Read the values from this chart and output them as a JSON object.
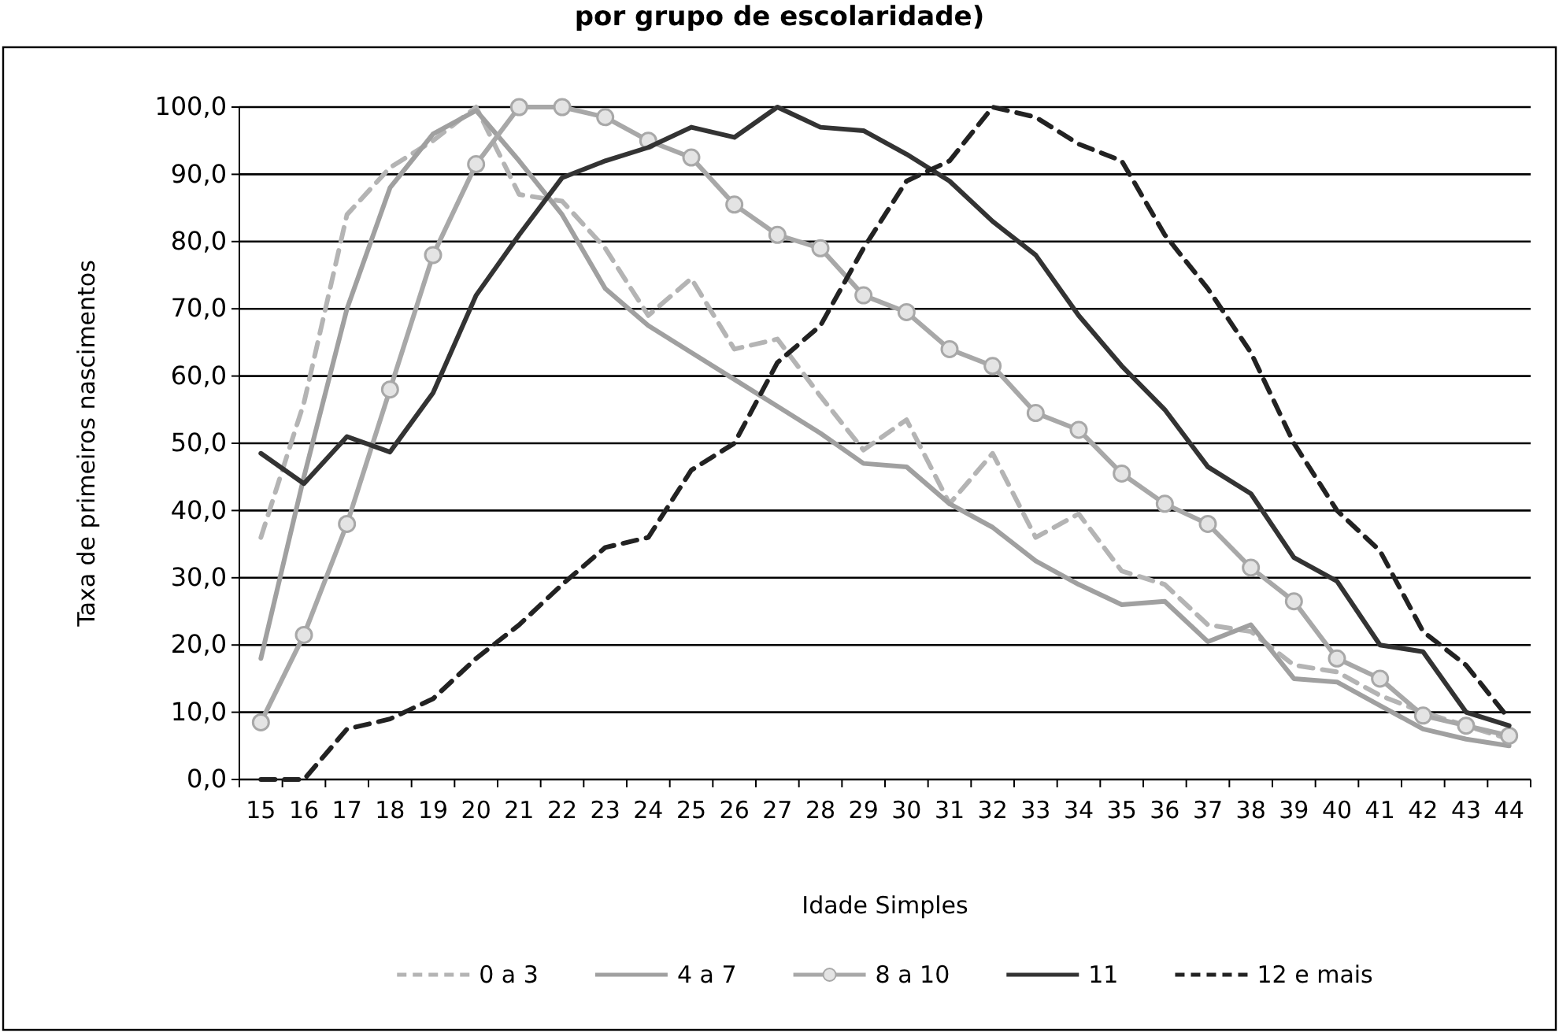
{
  "chart_data": {
    "type": "line",
    "title": "por grupo de escolaridade)",
    "xlabel": "Idade Simples",
    "ylabel": "Taxa de primeiros nascimentos",
    "categories": [
      "15",
      "16",
      "17",
      "18",
      "19",
      "20",
      "21",
      "22",
      "23",
      "24",
      "25",
      "26",
      "27",
      "28",
      "29",
      "30",
      "31",
      "32",
      "33",
      "34",
      "35",
      "36",
      "37",
      "38",
      "39",
      "40",
      "41",
      "42",
      "43",
      "44"
    ],
    "series": [
      {
        "name": "0 a 3",
        "color": "#b4b4b4",
        "line_style": "dashed",
        "marker": "none",
        "values": [
          36,
          56,
          84,
          91,
          95,
          100,
          87,
          86,
          79,
          69,
          74.5,
          64,
          65.5,
          57,
          49,
          53.5,
          41,
          48.5,
          36,
          39.5,
          31,
          29,
          23,
          22,
          17,
          16,
          12.5,
          10,
          8,
          6
        ]
      },
      {
        "name": "4 a 7",
        "color": "#a0a0a0",
        "line_style": "solid",
        "marker": "none",
        "values": [
          18,
          45,
          70,
          88,
          96,
          99.5,
          92,
          84,
          73,
          67.5,
          63.5,
          59.5,
          55.5,
          51.5,
          47,
          46.5,
          41,
          37.5,
          32.5,
          29,
          26,
          26.5,
          20.5,
          23,
          15,
          14.5,
          11,
          7.5,
          6,
          5
        ]
      },
      {
        "name": "8 a 10",
        "color": "#a8a8a8",
        "line_style": "solid",
        "marker": "circle",
        "values": [
          8.5,
          21.5,
          38,
          58,
          78,
          91.5,
          100,
          100,
          98.5,
          95,
          92.5,
          85.5,
          81,
          79,
          72,
          69.5,
          64,
          61.5,
          54.5,
          52,
          45.5,
          41,
          38,
          31.5,
          26.5,
          18,
          15,
          9.5,
          8,
          6.5
        ]
      },
      {
        "name": "11",
        "color": "#333333",
        "line_style": "solid",
        "marker": "none",
        "values": [
          48.5,
          44,
          51,
          48.7,
          57.5,
          72,
          81,
          89.5,
          92,
          94,
          97,
          95.5,
          100,
          97,
          96.5,
          93,
          89,
          83,
          78,
          69,
          61.5,
          55,
          46.5,
          42.5,
          33,
          29.5,
          20,
          19,
          10,
          8
        ]
      },
      {
        "name": "12 e mais",
        "color": "#222222",
        "line_style": "dashed",
        "marker": "none",
        "values": [
          0,
          0,
          7.5,
          9,
          12,
          18,
          23,
          29,
          34.5,
          36,
          46,
          50,
          62,
          67.5,
          79,
          89,
          92,
          100,
          98.5,
          94.5,
          92,
          81,
          73,
          63.5,
          50,
          40,
          34,
          22,
          17,
          9
        ]
      }
    ],
    "ylim": [
      0,
      100
    ],
    "yticks": [
      {
        "value": 0,
        "label": "0,0"
      },
      {
        "value": 10,
        "label": "10,0"
      },
      {
        "value": 20,
        "label": "20,0"
      },
      {
        "value": 30,
        "label": "30,0"
      },
      {
        "value": 40,
        "label": "40,0"
      },
      {
        "value": 50,
        "label": "50,0"
      },
      {
        "value": 60,
        "label": "60,0"
      },
      {
        "value": 70,
        "label": "70,0"
      },
      {
        "value": 80,
        "label": "80,0"
      },
      {
        "value": 90,
        "label": "90,0"
      },
      {
        "value": 100,
        "label": "100,0"
      }
    ],
    "grid": "y",
    "legend": "bottom"
  }
}
